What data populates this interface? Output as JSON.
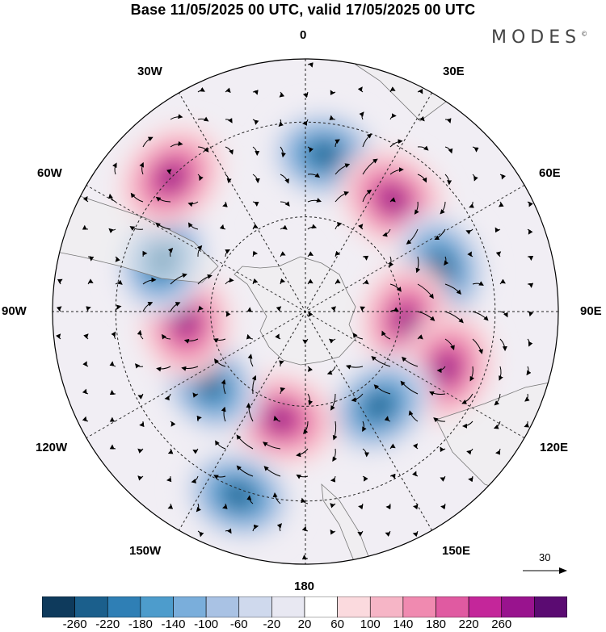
{
  "title": "Base 11/05/2025 00 UTC, valid 17/05/2025 00 UTC",
  "brand": "MODES",
  "brand_mark": "©",
  "longitude_labels": {
    "n0": "0",
    "n30e": "30E",
    "n60e": "60E",
    "n90e": "90E",
    "n120e": "120E",
    "n150e": "150E",
    "n180": "180",
    "n150w": "150W",
    "n120w": "120W",
    "n90w": "90W",
    "n60w": "60W",
    "n30w": "30W"
  },
  "reference_vector": {
    "value": "30",
    "icon": "arrow-right-icon"
  },
  "colorbar": {
    "ticks": [
      "-260",
      "-220",
      "-180",
      "-140",
      "-100",
      "-60",
      "-20",
      "20",
      "60",
      "100",
      "140",
      "180",
      "220",
      "260"
    ],
    "colors": [
      "#0e3a5c",
      "#1b5f8c",
      "#2f7fb5",
      "#4d9ccc",
      "#7aaedb",
      "#a9c2e4",
      "#cfd9ed",
      "#e8e8f2",
      "#ffffff",
      "#fbdade",
      "#f6b5c6",
      "#f08ab0",
      "#e05aa1",
      "#c4269a",
      "#99138e",
      "#5b0b72"
    ]
  },
  "map_data": {
    "projection": "south-polar-stereographic",
    "anomaly_centers": [
      {
        "lon": 7,
        "lat": -40,
        "sign": "neg"
      },
      {
        "lon": 38,
        "lat": -45,
        "sign": "pos"
      },
      {
        "lon": 72,
        "lat": -45,
        "sign": "neg"
      },
      {
        "lon": 95,
        "lat": -58,
        "sign": "pos"
      },
      {
        "lon": 112,
        "lat": -42,
        "sign": "pos"
      },
      {
        "lon": 142,
        "lat": -52,
        "sign": "neg"
      },
      {
        "lon": -167,
        "lat": -55,
        "sign": "pos"
      },
      {
        "lon": -127,
        "lat": -52,
        "sign": "neg"
      },
      {
        "lon": -95,
        "lat": -52,
        "sign": "pos"
      },
      {
        "lon": -70,
        "lat": -42,
        "sign": "neg"
      },
      {
        "lon": -45,
        "lat": -30,
        "sign": "pos"
      },
      {
        "lon": -160,
        "lat": -28,
        "sign": "neg"
      }
    ]
  }
}
